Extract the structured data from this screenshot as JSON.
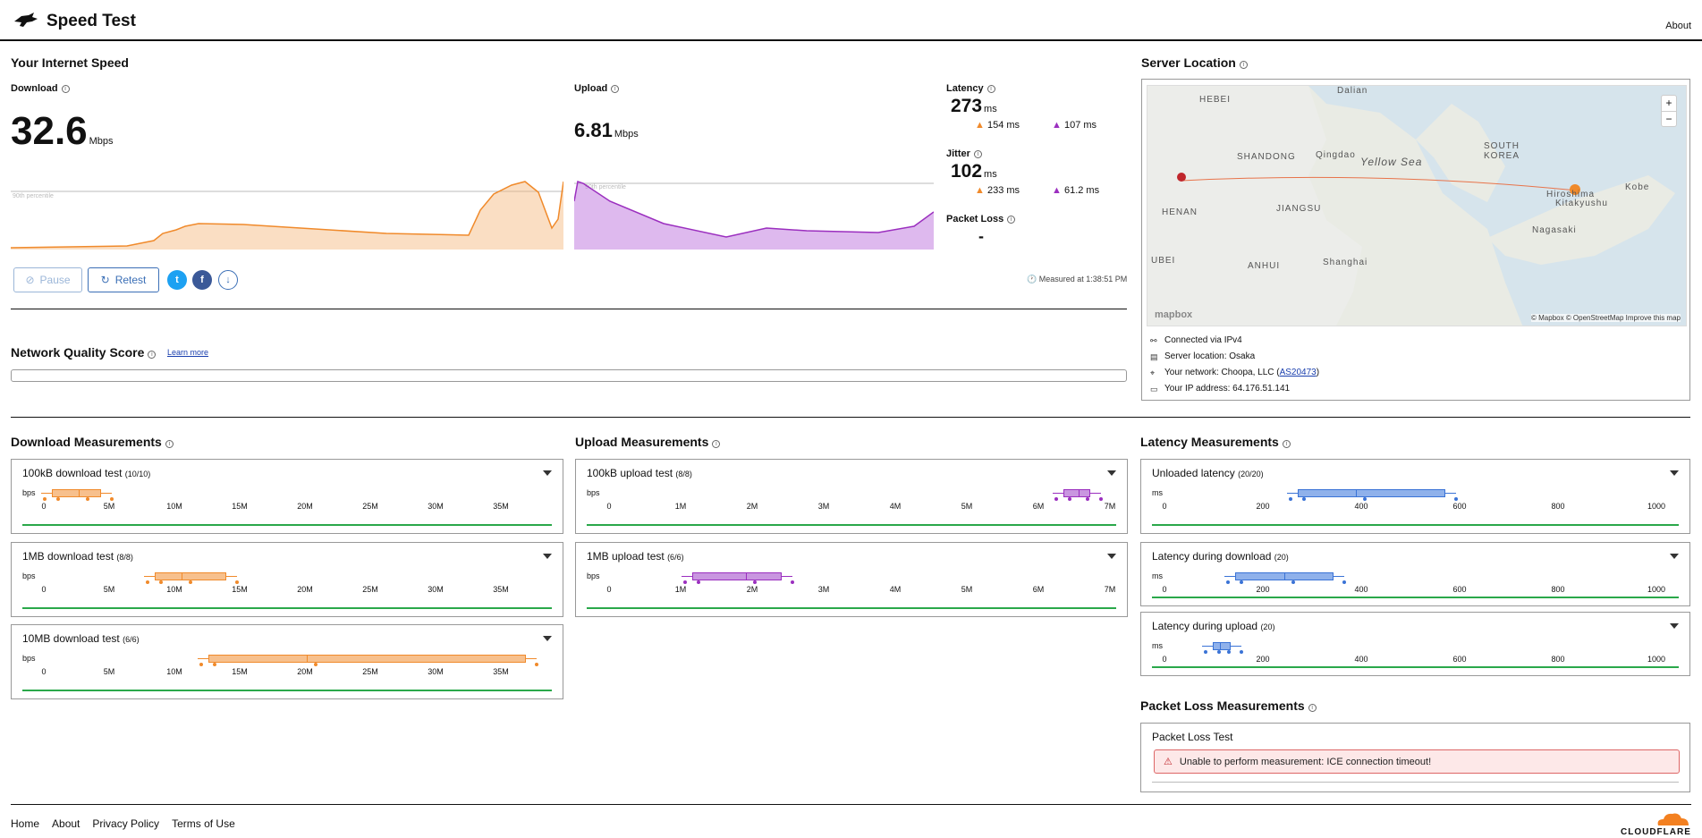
{
  "header": {
    "title": "Speed Test",
    "about": "About"
  },
  "speed": {
    "section_title": "Your Internet Speed",
    "download": {
      "label": "Download",
      "value": "32.6",
      "unit": "Mbps"
    },
    "upload": {
      "label": "Upload",
      "value": "6.81",
      "unit": "Mbps"
    },
    "percentile_label": "90th percentile",
    "latency": {
      "label": "Latency",
      "value": "273",
      "unit": "ms",
      "down": "154 ms",
      "up": "107 ms"
    },
    "jitter": {
      "label": "Jitter",
      "value": "102",
      "unit": "ms",
      "down": "233 ms",
      "up": "61.2 ms"
    },
    "packet_loss": {
      "label": "Packet Loss",
      "value": "-"
    },
    "measured_at": "Measured at 1:38:51 PM",
    "buttons": {
      "pause": "Pause",
      "retest": "Retest"
    }
  },
  "quality": {
    "title": "Network Quality Score",
    "learn_more": "Learn more"
  },
  "server": {
    "title": "Server Location",
    "map_labels": [
      "HEBEI",
      "SHANDONG",
      "Qingdao",
      "Yellow Sea",
      "SOUTH KOREA",
      "HENAN",
      "JIANGSU",
      "ANHUI",
      "Shanghai",
      "Hiroshima",
      "Kitakyushu",
      "Nagasaki",
      "Kobe",
      "Dalian",
      "UBEI"
    ],
    "attribution": "© Mapbox © OpenStreetMap  Improve this map",
    "mapbox": "mapbox",
    "connected": "Connected via IPv4",
    "location": "Server location: Osaka",
    "network_prefix": "Your network: Choopa, LLC (",
    "network_as": "AS20473",
    "network_suffix": ")",
    "ip": "Your IP address: 64.176.51.141"
  },
  "colors": {
    "download": "#f08a2b",
    "upload": "#9b2fbf",
    "latency": "#3a73d6",
    "green": "#2aa84a"
  },
  "download_measurements": {
    "title": "Download Measurements",
    "unit": "bps",
    "ticks": [
      "0",
      "5M",
      "10M",
      "15M",
      "20M",
      "25M",
      "30M",
      "35M"
    ],
    "tests": [
      {
        "name": "100kB download test",
        "count": "(10/10)"
      },
      {
        "name": "1MB download test",
        "count": "(8/8)"
      },
      {
        "name": "10MB download test",
        "count": "(6/6)"
      }
    ]
  },
  "upload_measurements": {
    "title": "Upload Measurements",
    "unit": "bps",
    "ticks": [
      "0",
      "1M",
      "2M",
      "3M",
      "4M",
      "5M",
      "6M",
      "7M"
    ],
    "tests": [
      {
        "name": "100kB upload test",
        "count": "(8/8)"
      },
      {
        "name": "1MB upload test",
        "count": "(6/6)"
      }
    ]
  },
  "latency_measurements": {
    "title": "Latency Measurements",
    "unit": "ms",
    "ticks": [
      "0",
      "200",
      "400",
      "600",
      "800",
      "1000"
    ],
    "tests": [
      {
        "name": "Unloaded latency",
        "count": "(20/20)"
      },
      {
        "name": "Latency during download",
        "count": "(20)"
      },
      {
        "name": "Latency during upload",
        "count": "(20)"
      }
    ]
  },
  "packet_loss_measurements": {
    "title": "Packet Loss Measurements",
    "test": "Packet Loss Test",
    "error": "Unable to perform measurement: ICE connection timeout!"
  },
  "footer": {
    "links": [
      "Home",
      "About",
      "Privacy Policy",
      "Terms of Use"
    ],
    "brand": "CLOUDFLARE"
  }
}
